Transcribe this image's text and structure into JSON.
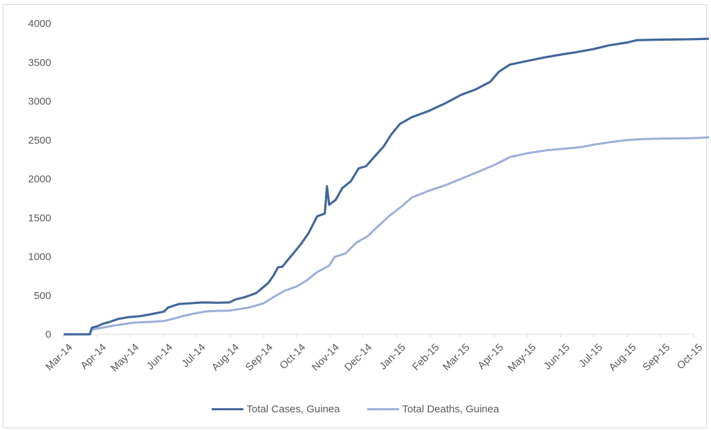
{
  "chart_data": {
    "type": "line",
    "title": "",
    "xlabel": "",
    "ylabel": "",
    "ylim": [
      0,
      4000
    ],
    "yticks": [
      0,
      500,
      1000,
      1500,
      2000,
      2500,
      3000,
      3500,
      4000
    ],
    "x_tick_labels": [
      "Mar-14",
      "Apr-14",
      "May-14",
      "Jun-14",
      "Jul-14",
      "Aug-14",
      "Sep-14",
      "Oct-14",
      "Nov-14",
      "Dec-14",
      "Jan-15",
      "Feb-15",
      "Mar-15",
      "Apr-15",
      "May-15",
      "Jun-15",
      "Jul-15",
      "Aug-15",
      "Sep-15",
      "Oct-15"
    ],
    "grid": false,
    "legend_position": "bottom",
    "series": [
      {
        "name": "Total Cases, Guinea",
        "color": "#41679a",
        "points": [
          [
            "2014-03-01",
            0
          ],
          [
            "2014-03-25",
            0
          ],
          [
            "2014-03-27",
            86
          ],
          [
            "2014-04-01",
            103
          ],
          [
            "2014-04-05",
            130
          ],
          [
            "2014-04-12",
            158
          ],
          [
            "2014-04-20",
            197
          ],
          [
            "2014-04-30",
            221
          ],
          [
            "2014-05-10",
            233
          ],
          [
            "2014-05-20",
            258
          ],
          [
            "2014-05-28",
            281
          ],
          [
            "2014-06-01",
            291
          ],
          [
            "2014-06-05",
            344
          ],
          [
            "2014-06-15",
            390
          ],
          [
            "2014-06-25",
            398
          ],
          [
            "2014-07-05",
            409
          ],
          [
            "2014-07-10",
            410
          ],
          [
            "2014-07-20",
            406
          ],
          [
            "2014-07-31",
            410
          ],
          [
            "2014-08-06",
            448
          ],
          [
            "2014-08-15",
            480
          ],
          [
            "2014-08-25",
            531
          ],
          [
            "2014-09-01",
            612
          ],
          [
            "2014-09-05",
            660
          ],
          [
            "2014-09-10",
            760
          ],
          [
            "2014-09-14",
            862
          ],
          [
            "2014-09-18",
            870
          ],
          [
            "2014-09-22",
            940
          ],
          [
            "2014-09-28",
            1040
          ],
          [
            "2014-10-05",
            1160
          ],
          [
            "2014-10-12",
            1300
          ],
          [
            "2014-10-20",
            1519
          ],
          [
            "2014-10-27",
            1553
          ],
          [
            "2014-10-29",
            1906
          ],
          [
            "2014-10-31",
            1667
          ],
          [
            "2014-11-06",
            1731
          ],
          [
            "2014-11-12",
            1880
          ],
          [
            "2014-11-20",
            1971
          ],
          [
            "2014-11-27",
            2134
          ],
          [
            "2014-12-04",
            2164
          ],
          [
            "2014-12-12",
            2292
          ],
          [
            "2014-12-20",
            2416
          ],
          [
            "2014-12-27",
            2571
          ],
          [
            "2015-01-04",
            2707
          ],
          [
            "2015-01-15",
            2795
          ],
          [
            "2015-01-30",
            2871
          ],
          [
            "2015-02-15",
            2975
          ],
          [
            "2015-03-01",
            3080
          ],
          [
            "2015-03-15",
            3154
          ],
          [
            "2015-03-28",
            3250
          ],
          [
            "2015-04-05",
            3380
          ],
          [
            "2015-04-15",
            3470
          ],
          [
            "2015-04-30",
            3515
          ],
          [
            "2015-05-15",
            3558
          ],
          [
            "2015-06-01",
            3600
          ],
          [
            "2015-06-15",
            3630
          ],
          [
            "2015-07-01",
            3670
          ],
          [
            "2015-07-15",
            3718
          ],
          [
            "2015-08-01",
            3756
          ],
          [
            "2015-08-10",
            3786
          ],
          [
            "2015-08-31",
            3792
          ],
          [
            "2015-09-15",
            3795
          ],
          [
            "2015-09-30",
            3797
          ],
          [
            "2015-10-15",
            3804
          ]
        ]
      },
      {
        "name": "Total Deaths, Guinea",
        "color": "#9aaedb",
        "points": [
          [
            "2014-03-01",
            0
          ],
          [
            "2014-03-25",
            0
          ],
          [
            "2014-03-27",
            60
          ],
          [
            "2014-04-05",
            84
          ],
          [
            "2014-04-15",
            110
          ],
          [
            "2014-04-25",
            130
          ],
          [
            "2014-05-05",
            151
          ],
          [
            "2014-05-20",
            160
          ],
          [
            "2014-06-01",
            171
          ],
          [
            "2014-06-10",
            200
          ],
          [
            "2014-06-20",
            240
          ],
          [
            "2014-07-01",
            272
          ],
          [
            "2014-07-10",
            294
          ],
          [
            "2014-07-20",
            301
          ],
          [
            "2014-07-31",
            304
          ],
          [
            "2014-08-10",
            325
          ],
          [
            "2014-08-20",
            350
          ],
          [
            "2014-09-01",
            400
          ],
          [
            "2014-09-10",
            480
          ],
          [
            "2014-09-20",
            560
          ],
          [
            "2014-10-01",
            615
          ],
          [
            "2014-10-10",
            690
          ],
          [
            "2014-10-20",
            802
          ],
          [
            "2014-10-31",
            884
          ],
          [
            "2014-11-05",
            996
          ],
          [
            "2014-11-15",
            1040
          ],
          [
            "2014-11-25",
            1180
          ],
          [
            "2014-12-05",
            1260
          ],
          [
            "2014-12-15",
            1390
          ],
          [
            "2014-12-25",
            1520
          ],
          [
            "2015-01-05",
            1640
          ],
          [
            "2015-01-15",
            1760
          ],
          [
            "2015-01-31",
            1850
          ],
          [
            "2015-02-15",
            1920
          ],
          [
            "2015-03-01",
            2000
          ],
          [
            "2015-03-15",
            2080
          ],
          [
            "2015-04-01",
            2180
          ],
          [
            "2015-04-15",
            2280
          ],
          [
            "2015-05-01",
            2330
          ],
          [
            "2015-05-20",
            2370
          ],
          [
            "2015-06-01",
            2385
          ],
          [
            "2015-06-20",
            2410
          ],
          [
            "2015-07-01",
            2440
          ],
          [
            "2015-07-15",
            2470
          ],
          [
            "2015-08-01",
            2500
          ],
          [
            "2015-08-15",
            2512
          ],
          [
            "2015-09-01",
            2519
          ],
          [
            "2015-09-30",
            2524
          ],
          [
            "2015-10-15",
            2535
          ]
        ]
      }
    ]
  }
}
